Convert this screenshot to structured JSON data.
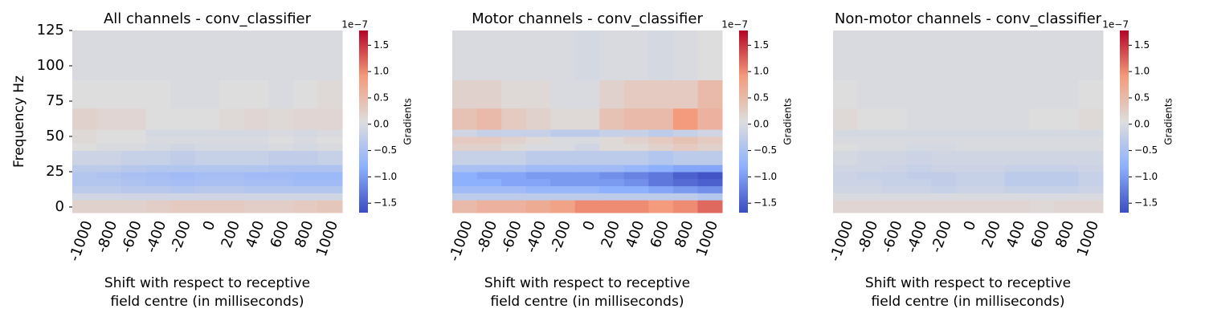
{
  "chart_data": [
    {
      "type": "heatmap",
      "title": "All channels - conv_classifier",
      "x": [
        -1000,
        -800,
        -600,
        -400,
        -200,
        0,
        200,
        400,
        600,
        800,
        1000
      ],
      "xlabel": [
        "Shift with respect to receptive",
        "field centre (in milliseconds)"
      ],
      "ylabel": "Frequency Hz",
      "ylim": [
        -4,
        125
      ],
      "yticks": [
        0,
        25,
        50,
        75,
        100,
        125
      ],
      "ybins": [
        -4,
        5,
        10,
        15,
        20,
        25,
        30,
        40,
        45,
        50,
        55,
        70,
        90,
        125
      ],
      "z": [
        [
          0.2,
          0.2,
          0.2,
          0.25,
          0.3,
          0.3,
          0.3,
          0.25,
          0.25,
          0.3,
          0.35
        ],
        [
          -0.1,
          -0.1,
          -0.1,
          -0.1,
          -0.1,
          -0.1,
          -0.1,
          -0.1,
          -0.1,
          -0.1,
          -0.1
        ],
        [
          -0.3,
          -0.3,
          -0.35,
          -0.35,
          -0.4,
          -0.35,
          -0.35,
          -0.4,
          -0.4,
          -0.4,
          -0.4
        ],
        [
          -0.4,
          -0.4,
          -0.45,
          -0.5,
          -0.55,
          -0.5,
          -0.5,
          -0.55,
          -0.55,
          -0.6,
          -0.6
        ],
        [
          -0.4,
          -0.45,
          -0.5,
          -0.55,
          -0.6,
          -0.55,
          -0.55,
          -0.6,
          -0.6,
          -0.65,
          -0.65
        ],
        [
          -0.3,
          -0.3,
          -0.35,
          -0.4,
          -0.4,
          -0.4,
          -0.4,
          -0.4,
          -0.45,
          -0.45,
          -0.45
        ],
        [
          -0.15,
          -0.15,
          -0.2,
          -0.2,
          -0.25,
          -0.2,
          -0.2,
          -0.2,
          -0.25,
          -0.25,
          -0.2
        ],
        [
          0.05,
          0,
          0,
          -0.05,
          -0.1,
          -0.05,
          -0.05,
          -0.05,
          0,
          -0.05,
          0
        ],
        [
          0.1,
          0.05,
          0.05,
          0,
          0,
          0,
          0,
          0,
          0.05,
          0,
          0.05
        ],
        [
          0.1,
          0.05,
          0.05,
          -0.05,
          -0.05,
          -0.05,
          -0.05,
          -0.05,
          0,
          -0.05,
          0
        ],
        [
          0.2,
          0.15,
          0.15,
          0.05,
          0.05,
          0.05,
          0.1,
          0.15,
          0.1,
          0.15,
          0.15
        ],
        [
          0.05,
          0.05,
          0.05,
          0.05,
          0,
          0,
          0.05,
          0.05,
          0,
          0.05,
          0.1
        ],
        [
          0,
          0,
          0,
          0,
          0,
          0,
          0,
          0,
          0,
          0,
          0
        ]
      ],
      "colormap": [
        "#3b4cc0",
        "#8db0fe",
        "#dddddd",
        "#f49a7b",
        "#b40426"
      ],
      "clim": [
        -1.68,
        1.78
      ],
      "cticks": [
        {
          "value": -1.5,
          "label": "−1.5"
        },
        {
          "value": -1.0,
          "label": "−1.0"
        },
        {
          "value": -0.5,
          "label": "−0.5"
        },
        {
          "value": 0,
          "label": "0.0"
        },
        0.5,
        {
          "value": 1.0,
          "label": "1.0"
        },
        1.5
      ],
      "colorbar_label": "Gradients",
      "colorbar_offset": "1e−7"
    },
    {
      "type": "heatmap",
      "title": "Motor channels - conv_classifier",
      "x": [
        -1000,
        -800,
        -600,
        -400,
        -200,
        0,
        200,
        400,
        600,
        800,
        1000
      ],
      "xlabel": [
        "Shift with respect to receptive",
        "field centre (in milliseconds)"
      ],
      "ylim": [
        -4,
        125
      ],
      "ybins": [
        -4,
        5,
        10,
        15,
        20,
        25,
        30,
        40,
        45,
        50,
        55,
        70,
        90,
        125
      ],
      "z": [
        [
          0.5,
          0.6,
          0.6,
          0.7,
          0.8,
          1.0,
          1.0,
          1.0,
          0.9,
          1.0,
          1.2
        ],
        [
          -0.3,
          -0.3,
          -0.3,
          -0.3,
          -0.3,
          -0.3,
          -0.3,
          -0.3,
          -0.3,
          -0.3,
          -0.4
        ],
        [
          -0.6,
          -0.6,
          -0.6,
          -0.7,
          -0.7,
          -0.7,
          -0.8,
          -0.8,
          -0.9,
          -1.0,
          -1.1
        ],
        [
          -0.8,
          -0.8,
          -0.9,
          -0.9,
          -1.0,
          -1.0,
          -1.0,
          -1.1,
          -1.3,
          -1.4,
          -1.5
        ],
        [
          -0.8,
          -0.9,
          -0.9,
          -1.0,
          -1.0,
          -1.0,
          -1.1,
          -1.2,
          -1.3,
          -1.5,
          -1.6
        ],
        [
          -0.5,
          -0.5,
          -0.5,
          -0.6,
          -0.6,
          -0.6,
          -0.6,
          -0.7,
          -0.8,
          -0.9,
          -0.9
        ],
        [
          -0.2,
          -0.2,
          -0.2,
          -0.3,
          -0.3,
          -0.3,
          -0.3,
          -0.3,
          -0.4,
          -0.3,
          -0.3
        ],
        [
          0.2,
          0.2,
          0.1,
          0,
          0,
          -0.1,
          0.1,
          0.1,
          0.2,
          0.3,
          0.2
        ],
        [
          0.3,
          0.3,
          0.2,
          0.1,
          0,
          0,
          0.1,
          0.2,
          0.3,
          0.4,
          0.3
        ],
        [
          -0.1,
          -0.2,
          -0.2,
          -0.2,
          -0.3,
          -0.3,
          -0.2,
          -0.2,
          -0.3,
          -0.2,
          -0.1
        ],
        [
          0.4,
          0.5,
          0.3,
          0.2,
          0.1,
          0.1,
          0.4,
          0.5,
          0.5,
          0.9,
          0.6
        ],
        [
          0.2,
          0.2,
          0.1,
          0.1,
          0,
          0,
          0.2,
          0.3,
          0.3,
          0.3,
          0.5
        ],
        [
          0,
          0,
          0,
          0,
          0,
          -0.05,
          0,
          0,
          -0.05,
          0,
          0.05
        ]
      ],
      "colormap": [
        "#3b4cc0",
        "#8db0fe",
        "#dddddd",
        "#f49a7b",
        "#b40426"
      ],
      "clim": [
        -1.68,
        1.78
      ],
      "cticks": [
        {
          "value": -1.5,
          "label": "−1.5"
        },
        {
          "value": -1.0,
          "label": "−1.0"
        },
        {
          "value": -0.5,
          "label": "−0.5"
        },
        {
          "value": 0,
          "label": "0.0"
        },
        0.5,
        {
          "value": 1.0,
          "label": "1.0"
        },
        1.5
      ],
      "colorbar_label": "Gradients",
      "colorbar_offset": "1e−7"
    },
    {
      "type": "heatmap",
      "title": "Non-motor channels - conv_classifier",
      "x": [
        -1000,
        -800,
        -600,
        -400,
        -200,
        0,
        200,
        400,
        600,
        800,
        1000
      ],
      "xlabel": [
        "Shift with respect to receptive",
        "field centre (in milliseconds)"
      ],
      "ylim": [
        -4,
        125
      ],
      "ybins": [
        -4,
        5,
        10,
        15,
        20,
        25,
        30,
        40,
        45,
        50,
        55,
        70,
        90,
        125
      ],
      "z": [
        [
          0.15,
          0.15,
          0.15,
          0.15,
          0.15,
          0.15,
          0.15,
          0.15,
          0.1,
          0.15,
          0.15
        ],
        [
          0,
          0,
          0,
          0,
          0,
          0,
          0,
          0,
          0,
          0,
          0
        ],
        [
          -0.1,
          -0.1,
          -0.15,
          -0.15,
          -0.2,
          -0.15,
          -0.15,
          -0.2,
          -0.2,
          -0.2,
          -0.15
        ],
        [
          -0.15,
          -0.15,
          -0.2,
          -0.2,
          -0.25,
          -0.2,
          -0.2,
          -0.3,
          -0.3,
          -0.3,
          -0.2
        ],
        [
          -0.15,
          -0.2,
          -0.2,
          -0.25,
          -0.25,
          -0.2,
          -0.2,
          -0.3,
          -0.3,
          -0.3,
          -0.2
        ],
        [
          -0.1,
          -0.1,
          -0.15,
          -0.2,
          -0.15,
          -0.15,
          -0.15,
          -0.2,
          -0.2,
          -0.2,
          -0.15
        ],
        [
          -0.05,
          -0.1,
          -0.1,
          -0.15,
          -0.1,
          -0.1,
          -0.1,
          -0.1,
          -0.1,
          -0.1,
          -0.1
        ],
        [
          0.05,
          0,
          0,
          -0.05,
          -0.05,
          0,
          0,
          0,
          0,
          0,
          0
        ],
        [
          0,
          0,
          0,
          0,
          0,
          0,
          0,
          0,
          0,
          0,
          0
        ],
        [
          -0.05,
          -0.05,
          -0.05,
          -0.05,
          -0.05,
          -0.05,
          -0.05,
          -0.05,
          -0.05,
          -0.05,
          -0.05
        ],
        [
          0.1,
          0.05,
          0.05,
          0,
          0,
          0,
          0,
          0,
          0.05,
          0.05,
          0.1
        ],
        [
          0.05,
          0,
          0,
          0,
          0,
          0,
          0,
          0,
          0,
          0,
          0.05
        ],
        [
          0,
          0,
          0,
          0,
          0,
          0,
          0,
          0,
          0,
          0,
          0
        ]
      ],
      "colormap": [
        "#3b4cc0",
        "#8db0fe",
        "#dddddd",
        "#f49a7b",
        "#b40426"
      ],
      "clim": [
        -1.68,
        1.78
      ],
      "cticks": [
        {
          "value": -1.5,
          "label": "−1.5"
        },
        {
          "value": -1.0,
          "label": "−1.0"
        },
        {
          "value": -0.5,
          "label": "−0.5"
        },
        {
          "value": 0,
          "label": "0.0"
        },
        0.5,
        {
          "value": 1.0,
          "label": "1.0"
        },
        1.5
      ],
      "colorbar_label": "Gradients",
      "colorbar_offset": "1e−7"
    }
  ]
}
